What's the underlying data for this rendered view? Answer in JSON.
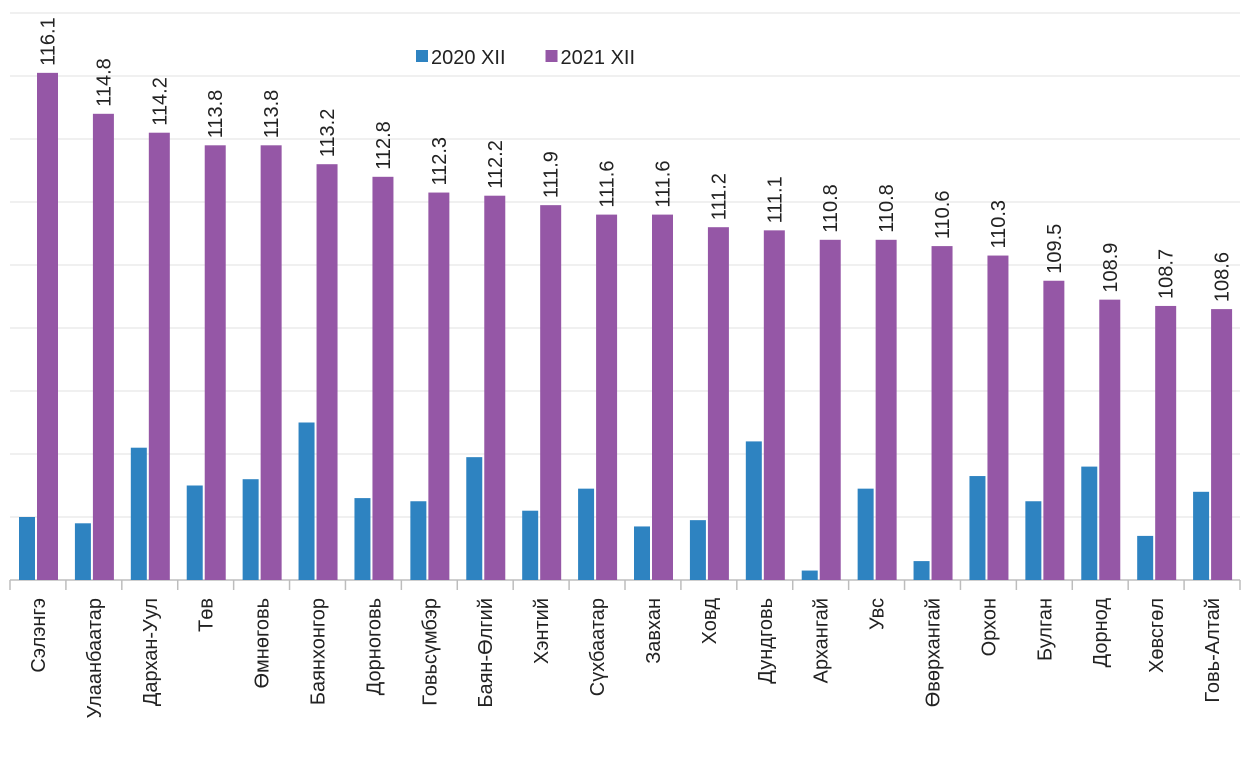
{
  "chart_data": {
    "type": "bar",
    "categories": [
      "Сэлэнгэ",
      "Улаанбаатар",
      "Дархан-Уул",
      "Төв",
      "Өмнөговь",
      "Баянхонгор",
      "Дорноговь",
      "Говьсүмбэр",
      "Баян-Өлгий",
      "Хэнтий",
      "Сүхбаатар",
      "Завхан",
      "Ховд",
      "Дундговь",
      "Архангай",
      "Увс",
      "Өвөрхангай",
      "Орхон",
      "Булган",
      "Дорнод",
      "Хөвсгөл",
      "Говь-Алтай"
    ],
    "series": [
      {
        "name": "2020 XII",
        "color": "#2e83c1",
        "values": [
          102.0,
          101.8,
          104.2,
          103.0,
          103.2,
          105.0,
          102.6,
          102.5,
          103.9,
          102.2,
          102.9,
          101.7,
          101.9,
          104.4,
          100.3,
          102.9,
          100.6,
          103.3,
          102.5,
          103.6,
          101.4,
          102.8
        ]
      },
      {
        "name": "2021 XII",
        "color": "#9557a6",
        "values": [
          116.1,
          114.8,
          114.2,
          113.8,
          113.8,
          113.2,
          112.8,
          112.3,
          112.2,
          111.9,
          111.6,
          111.6,
          111.2,
          111.1,
          110.8,
          110.8,
          110.6,
          110.3,
          109.5,
          108.9,
          108.7,
          108.6
        ],
        "data_labels": true
      }
    ],
    "ylim": [
      100,
      118
    ],
    "yticks": [
      100,
      102,
      104,
      106,
      108,
      110,
      112,
      114,
      116,
      118
    ],
    "grid": true,
    "legend": "top"
  }
}
